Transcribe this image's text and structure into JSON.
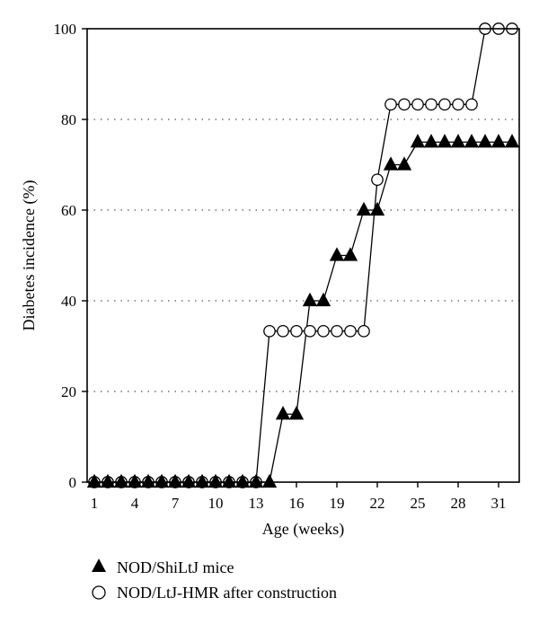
{
  "chart_data": {
    "type": "line",
    "title": "",
    "xlabel": "Age (weeks)",
    "ylabel": "Diabetes incidence (%)",
    "xlim": [
      1,
      32
    ],
    "ylim": [
      0,
      100
    ],
    "x_ticks": [
      1,
      4,
      7,
      10,
      13,
      16,
      19,
      22,
      25,
      28,
      31
    ],
    "x_tick_labels": [
      "1",
      "4",
      "7",
      "10",
      "13",
      "16",
      "19",
      "22",
      "25",
      "28",
      "31"
    ],
    "y_ticks": [
      0,
      20,
      40,
      60,
      80,
      100
    ],
    "y_tick_labels": [
      "0",
      "20",
      "40",
      "60",
      "80",
      "100"
    ],
    "grid": "horizontal dotted",
    "legend_position": "bottom-left",
    "series": [
      {
        "name": "NOD/ShiLtJ mice",
        "marker": "filled-triangle",
        "color": "#000000",
        "x": [
          1,
          2,
          3,
          4,
          5,
          6,
          7,
          8,
          9,
          10,
          11,
          12,
          13,
          14,
          15,
          16,
          17,
          18,
          19,
          20,
          21,
          22,
          23,
          24,
          25,
          26,
          27,
          28,
          29,
          30,
          31,
          32
        ],
        "values": [
          0,
          0,
          0,
          0,
          0,
          0,
          0,
          0,
          0,
          0,
          0,
          0,
          0,
          0,
          15,
          15,
          40,
          40,
          50,
          50,
          60,
          60,
          70,
          70,
          75,
          75,
          75,
          75,
          75,
          75,
          75,
          75
        ]
      },
      {
        "name": "NOD/LtJ-HMR after construction",
        "marker": "open-circle",
        "color": "#000000",
        "x": [
          1,
          2,
          3,
          4,
          5,
          6,
          7,
          8,
          9,
          10,
          11,
          12,
          13,
          14,
          15,
          16,
          17,
          18,
          19,
          20,
          21,
          22,
          23,
          24,
          25,
          26,
          27,
          28,
          29,
          30,
          31,
          32
        ],
        "values": [
          0,
          0,
          0,
          0,
          0,
          0,
          0,
          0,
          0,
          0,
          0,
          0,
          0,
          33.3,
          33.3,
          33.3,
          33.3,
          33.3,
          33.3,
          33.3,
          33.3,
          66.7,
          83.3,
          83.3,
          83.3,
          83.3,
          83.3,
          83.3,
          83.3,
          100,
          100,
          100
        ]
      }
    ]
  }
}
